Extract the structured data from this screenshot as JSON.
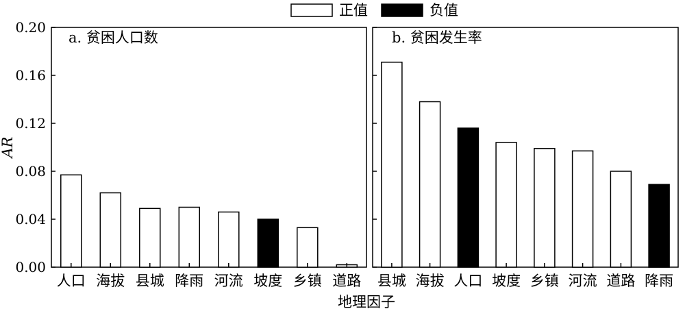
{
  "legend": {
    "placement": "top-center",
    "items": [
      {
        "label": "正值",
        "color": "#ffffff"
      },
      {
        "label": "负值",
        "color": "#000000"
      }
    ]
  },
  "shared": {
    "ylabel": "AR",
    "xlabel": "地理因子",
    "ylim": [
      0,
      0.2
    ],
    "yticks": [
      "0.00",
      "0.04",
      "0.08",
      "0.12",
      "0.16",
      "0.20"
    ]
  },
  "chart_data": [
    {
      "type": "bar",
      "title": "a. 贫困人口数",
      "categories": [
        "人口",
        "海拔",
        "县城",
        "降雨",
        "河流",
        "坡度",
        "乡镇",
        "道路"
      ],
      "values": [
        0.077,
        0.062,
        0.049,
        0.05,
        0.046,
        0.04,
        0.033,
        0.002
      ],
      "signs": [
        "正值",
        "正值",
        "正值",
        "正值",
        "正值",
        "负值",
        "正值",
        "正值"
      ],
      "ylabel": "AR",
      "ylim": [
        0,
        0.2
      ],
      "grid": false
    },
    {
      "type": "bar",
      "title": "b. 贫困发生率",
      "categories": [
        "县城",
        "海拔",
        "人口",
        "坡度",
        "乡镇",
        "河流",
        "道路",
        "降雨"
      ],
      "values": [
        0.171,
        0.138,
        0.116,
        0.104,
        0.099,
        0.097,
        0.08,
        0.069
      ],
      "signs": [
        "正值",
        "正值",
        "负值",
        "正值",
        "正值",
        "正值",
        "正值",
        "负值"
      ],
      "ylim": [
        0,
        0.2
      ],
      "grid": false
    }
  ]
}
